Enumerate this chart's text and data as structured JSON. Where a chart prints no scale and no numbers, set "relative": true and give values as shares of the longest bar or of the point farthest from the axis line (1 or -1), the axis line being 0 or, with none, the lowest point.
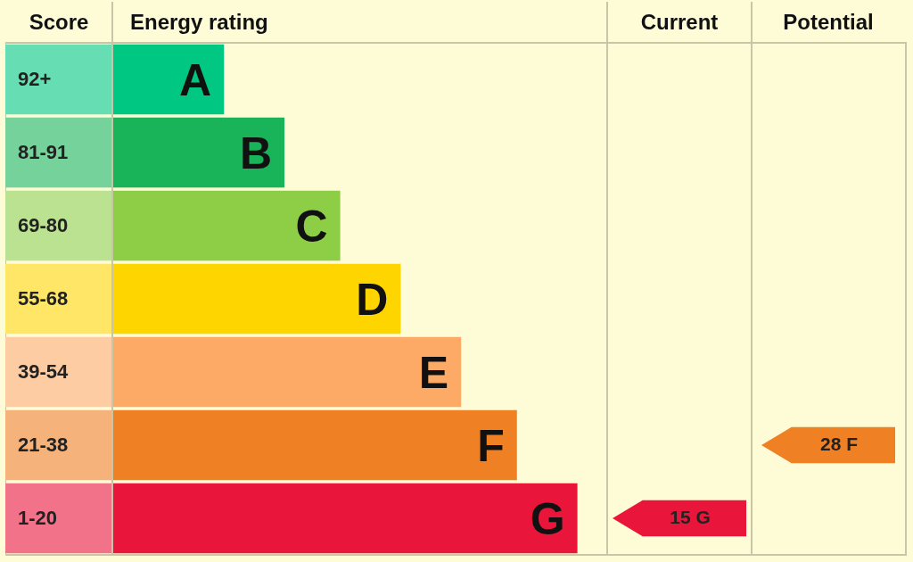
{
  "chart_data": {
    "type": "bar",
    "orientation": "horizontal",
    "relative": true,
    "xlabel": "Energy rating",
    "categories": [
      "A",
      "B",
      "C",
      "D",
      "E",
      "F",
      "G"
    ],
    "values": [
      0.24,
      0.37,
      0.49,
      0.62,
      0.75,
      0.87,
      1
    ],
    "colors": [
      "#00c781",
      "#19b459",
      "#8dce46",
      "#ffd500",
      "#fcaa65",
      "#ef8023",
      "#e9153b"
    ],
    "annotations": [
      "Score",
      "92+",
      "81-91",
      "69-80",
      "55-68",
      "39-54",
      "21-38",
      "1-20",
      "Current",
      "15 G",
      "Potential",
      "28 F"
    ]
  }
}
